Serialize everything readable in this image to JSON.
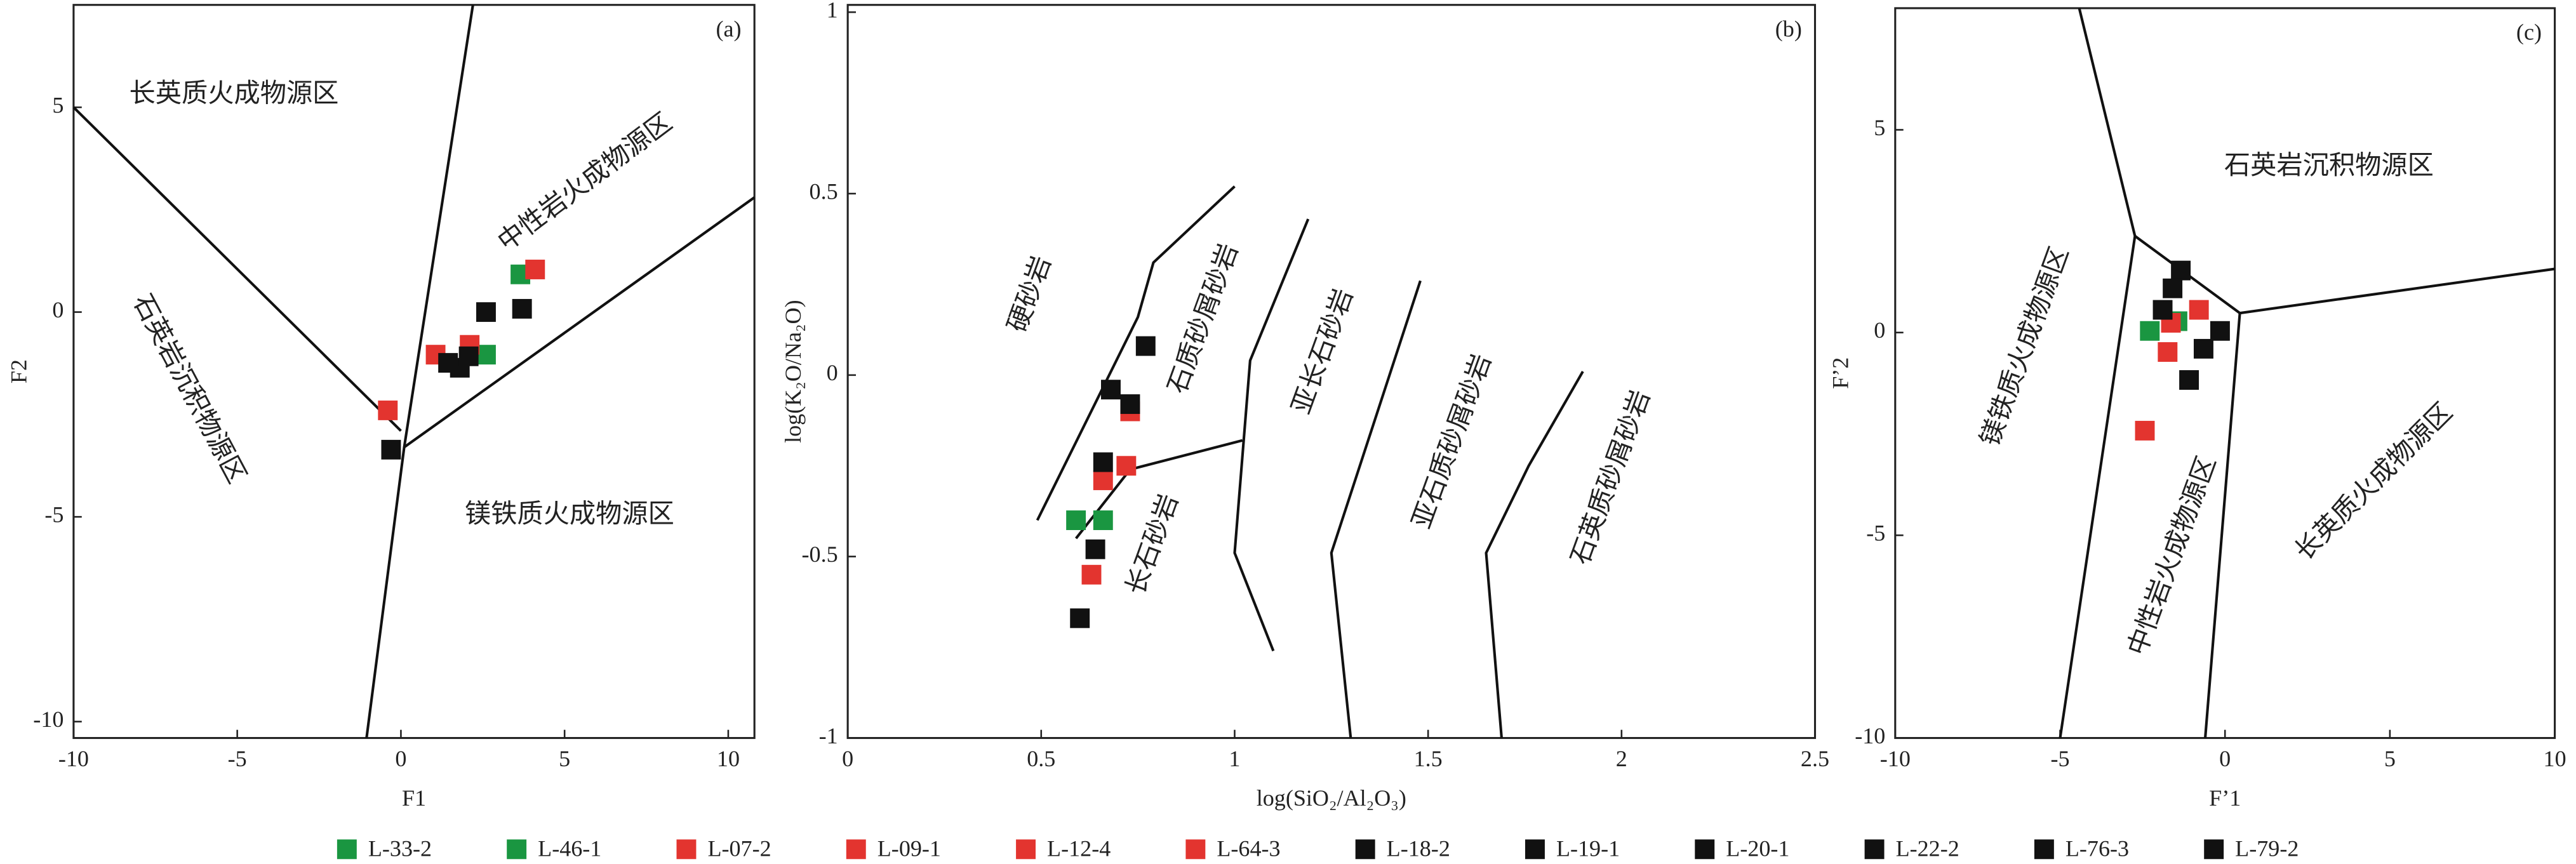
{
  "chart_data": [
    {
      "type": "scatter",
      "panel": "(a)",
      "x_label": "F1",
      "y_label": "F2",
      "xlim": [
        -10,
        10.8
      ],
      "ylim": [
        -10.4,
        7.5
      ],
      "xticks": [
        -10,
        -5,
        0,
        5,
        10
      ],
      "yticks": [
        -10,
        -5,
        0,
        5
      ],
      "regions": [
        "长英质火成物源区",
        "中性岩火成物源区",
        "石英岩沉积物源区",
        "镁铁质火成物源区"
      ],
      "boundaries": [
        [
          [
            -10,
            5
          ],
          [
            0,
            -2.9
          ]
        ],
        [
          [
            2.2,
            7.5
          ],
          [
            0.1,
            -3.3
          ],
          [
            -1.05,
            -10.4
          ]
        ],
        [
          [
            0.1,
            -3.3
          ],
          [
            10.8,
            2.8
          ]
        ]
      ],
      "series": [
        {
          "name": "L-33-2",
          "color": "#1a9641",
          "x": [
            3.65
          ],
          "y": [
            0.92
          ]
        },
        {
          "name": "L-46-1",
          "color": "#1a9641",
          "x": [
            2.6
          ],
          "y": [
            -1.04
          ]
        },
        {
          "name": "L-07-2",
          "color": "#e3342f",
          "x": [
            4.1
          ],
          "y": [
            1.04
          ]
        },
        {
          "name": "L-09-1",
          "color": "#e3342f",
          "x": [
            -0.4
          ],
          "y": [
            -2.4
          ]
        },
        {
          "name": "L-12-4",
          "color": "#e3342f",
          "x": [
            1.06
          ],
          "y": [
            -1.04
          ]
        },
        {
          "name": "L-64-3",
          "color": "#e3342f",
          "x": [
            2.1
          ],
          "y": [
            -0.8
          ]
        },
        {
          "name": "L-18-2",
          "color": "#111111",
          "x": [
            2.6
          ],
          "y": [
            0
          ]
        },
        {
          "name": "L-19-1",
          "color": "#111111",
          "x": [
            3.7
          ],
          "y": [
            0.08
          ]
        },
        {
          "name": "L-20-1",
          "color": "#111111",
          "x": [
            -0.3
          ],
          "y": [
            -3.36
          ]
        },
        {
          "name": "L-22-2",
          "color": "#111111",
          "x": [
            1.44
          ],
          "y": [
            -1.24
          ]
        },
        {
          "name": "L-76-3",
          "color": "#111111",
          "x": [
            1.8
          ],
          "y": [
            -1.36
          ]
        },
        {
          "name": "L-79-2",
          "color": "#111111",
          "x": [
            2.07
          ],
          "y": [
            -1.08
          ]
        }
      ]
    },
    {
      "type": "scatter",
      "panel": "(b)",
      "x_label": "log(SiO₂/Al₂O₃)",
      "y_label": "log(K₂O/Na₂O)",
      "xlim": [
        0,
        2.5
      ],
      "ylim": [
        -1,
        1.02
      ],
      "xticks": [
        0,
        0.5,
        1,
        1.5,
        2,
        2.5
      ],
      "yticks": [
        -1,
        -0.5,
        0,
        0.5,
        1
      ],
      "regions": [
        "硬砂岩",
        "石质砂屑砂岩",
        "亚长石砂岩",
        "亚石质砂屑砂岩",
        "石英质砂屑砂岩",
        "长石砂岩"
      ],
      "boundaries": [
        [
          [
            0.49,
            -0.4
          ],
          [
            0.75,
            0.16
          ],
          [
            0.79,
            0.31
          ],
          [
            1.0,
            0.52
          ]
        ],
        [
          [
            0.59,
            -0.45
          ],
          [
            0.73,
            -0.26
          ],
          [
            1.02,
            -0.18
          ]
        ],
        [
          [
            1.19,
            0.43
          ],
          [
            1.04,
            0.04
          ],
          [
            1.0,
            -0.49
          ],
          [
            1.1,
            -0.76
          ]
        ],
        [
          [
            1.48,
            0.26
          ],
          [
            1.25,
            -0.49
          ],
          [
            1.3,
            -1
          ]
        ],
        [
          [
            1.9,
            0.01
          ],
          [
            1.76,
            -0.25
          ],
          [
            1.65,
            -0.49
          ],
          [
            1.69,
            -1
          ]
        ]
      ],
      "series": [
        {
          "x": [
            0.59
          ],
          "y": [
            -0.4
          ]
        },
        {
          "x": [
            0.66
          ],
          "y": [
            -0.4
          ]
        },
        {
          "x": [
            0.63
          ],
          "y": [
            -0.55
          ]
        },
        {
          "x": [
            0.66
          ],
          "y": [
            -0.29
          ]
        },
        {
          "x": [
            0.72
          ],
          "y": [
            -0.25
          ]
        },
        {
          "x": [
            0.73
          ],
          "y": [
            -0.1
          ]
        },
        {
          "x": [
            0.77
          ],
          "y": [
            0.08
          ]
        },
        {
          "x": [
            0.68
          ],
          "y": [
            -0.04
          ]
        },
        {
          "x": [
            0.73
          ],
          "y": [
            -0.08
          ]
        },
        {
          "x": [
            0.66
          ],
          "y": [
            -0.24
          ]
        },
        {
          "x": [
            0.64
          ],
          "y": [
            -0.48
          ]
        },
        {
          "x": [
            0.6
          ],
          "y": [
            -0.67
          ]
        }
      ]
    },
    {
      "type": "scatter",
      "panel": "(c)",
      "x_label": "F’1",
      "y_label": "F’2",
      "xlim": [
        -10,
        10
      ],
      "ylim": [
        -10,
        8
      ],
      "xticks": [
        -10,
        -5,
        0,
        5,
        10
      ],
      "yticks": [
        -10,
        -5,
        0,
        5
      ],
      "regions": [
        "石英岩沉积物源区",
        "镁铁质火成物源区",
        "中性岩火成物源区",
        "长英质火成物源区"
      ],
      "boundaries": [
        [
          [
            -4.42,
            8
          ],
          [
            -2.73,
            2.38
          ],
          [
            -5,
            -10
          ]
        ],
        [
          [
            -2.73,
            2.38
          ],
          [
            0.45,
            0.48
          ],
          [
            10,
            1.57
          ]
        ],
        [
          [
            0.45,
            0.48
          ],
          [
            -0.6,
            -10
          ]
        ]
      ],
      "series": [
        {
          "x": [
            -2.28
          ],
          "y": [
            0.04
          ]
        },
        {
          "x": [
            -1.44
          ],
          "y": [
            0.28
          ]
        },
        {
          "x": [
            -2.43
          ],
          "y": [
            -2.42
          ]
        },
        {
          "x": [
            -1.74
          ],
          "y": [
            -0.48
          ]
        },
        {
          "x": [
            -0.79
          ],
          "y": [
            0.56
          ]
        },
        {
          "x": [
            -1.64
          ],
          "y": [
            0.24
          ]
        },
        {
          "x": [
            -1.34
          ],
          "y": [
            1.53
          ]
        },
        {
          "x": [
            -1.59
          ],
          "y": [
            1.09
          ]
        },
        {
          "x": [
            -1.89
          ],
          "y": [
            0.56
          ]
        },
        {
          "x": [
            -0.65
          ],
          "y": [
            -0.4
          ]
        },
        {
          "x": [
            -0.15
          ],
          "y": [
            0.04
          ]
        },
        {
          "x": [
            -1.09
          ],
          "y": [
            -1.17
          ]
        }
      ]
    }
  ]
}
